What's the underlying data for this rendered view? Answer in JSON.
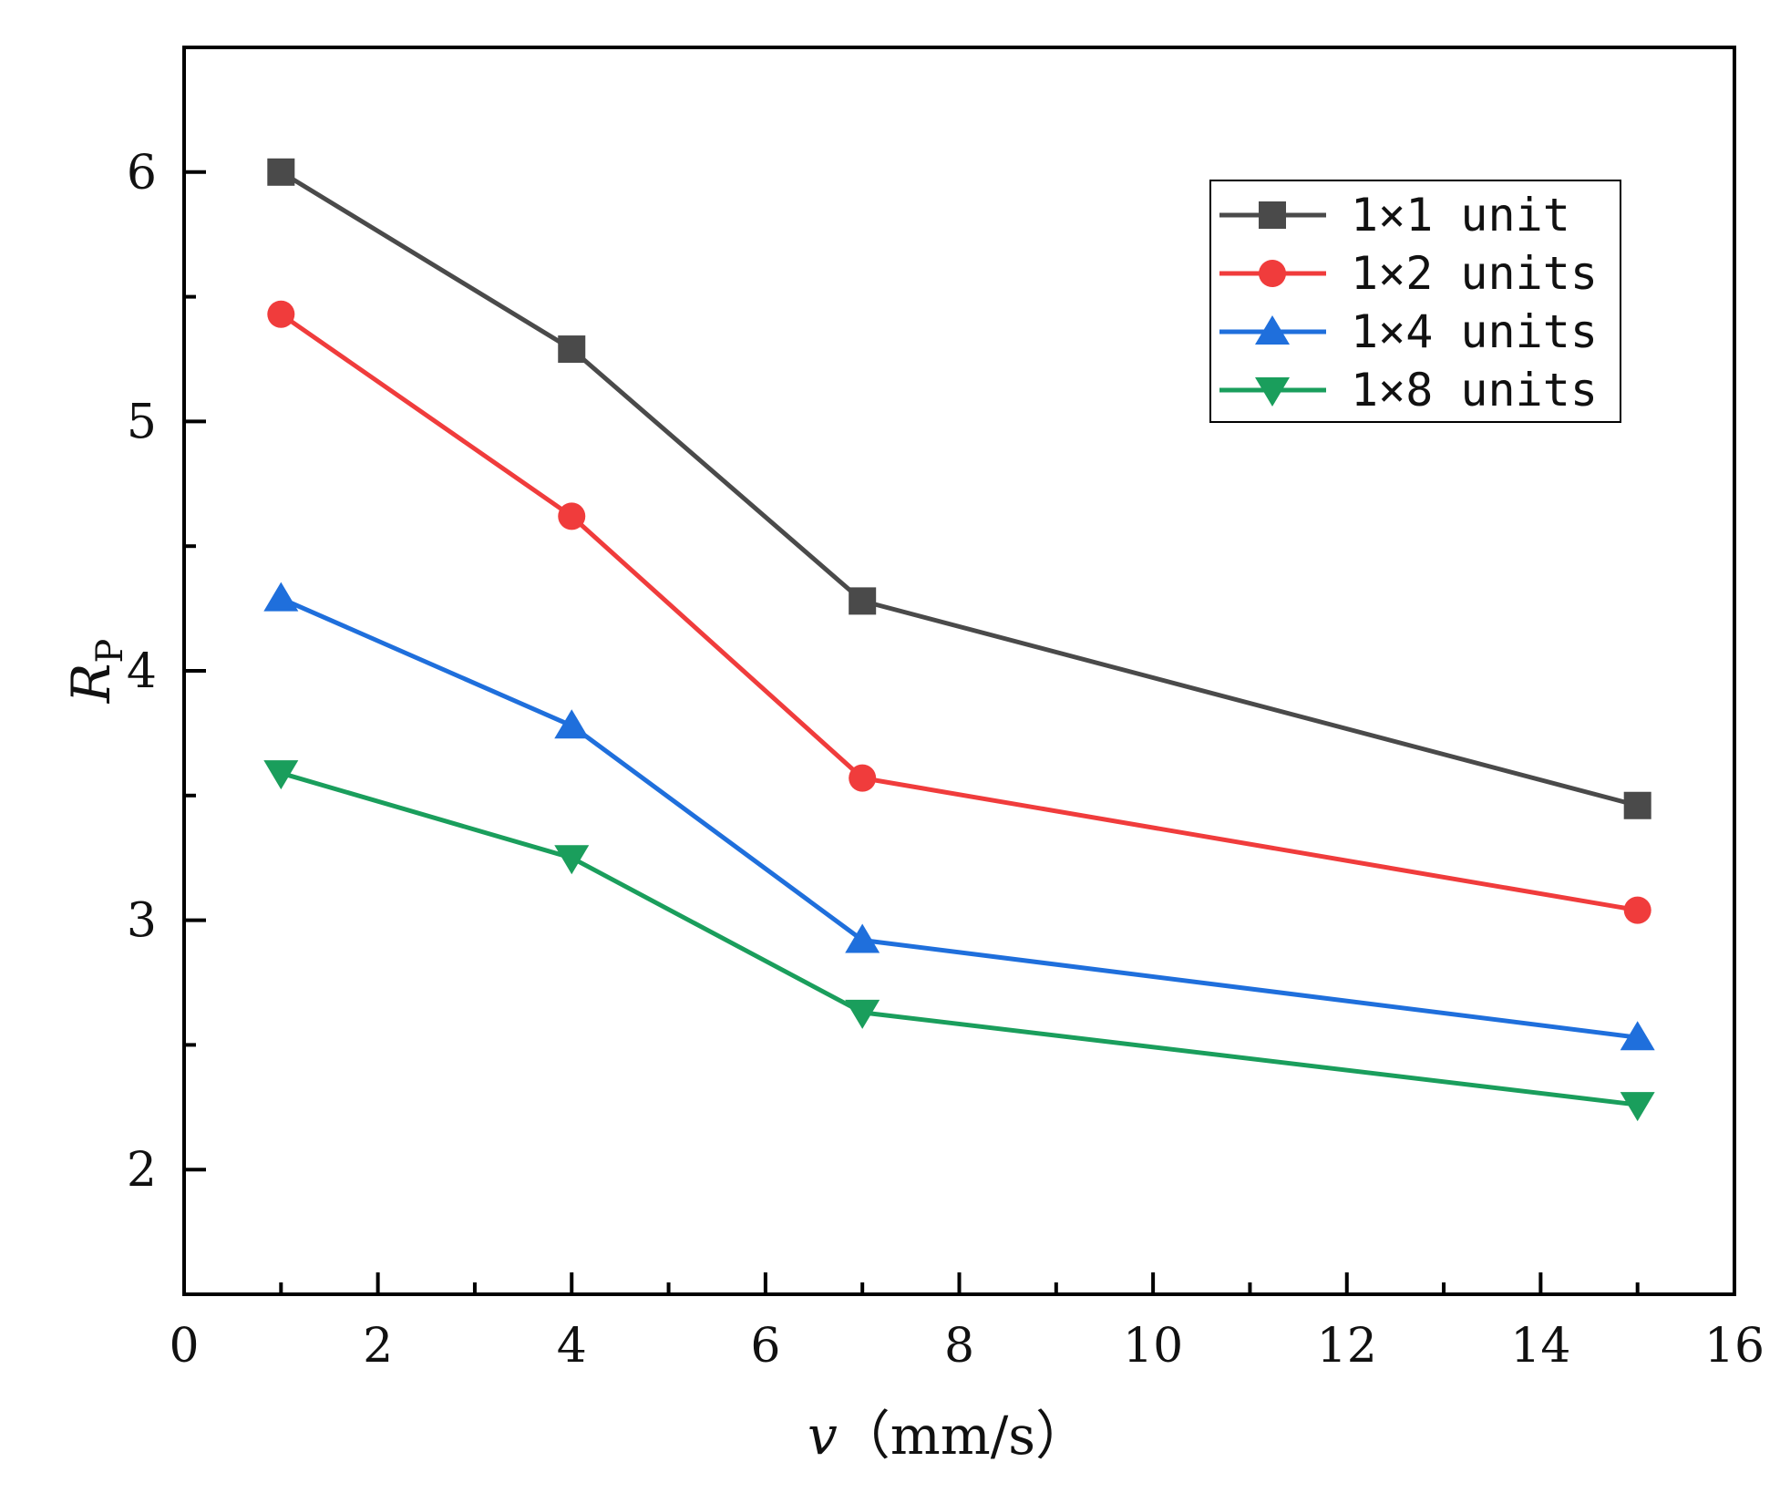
{
  "chart_data": {
    "type": "line",
    "title": "",
    "xlabel": {
      "main": "v",
      "unit": "（mm/s）"
    },
    "ylabel": {
      "main": "R",
      "sub": "P"
    },
    "xlim": [
      0,
      16
    ],
    "ylim": [
      1.5,
      6.5
    ],
    "xticks": [
      0,
      2,
      4,
      6,
      8,
      10,
      12,
      14,
      16
    ],
    "xtick_labels": [
      "0",
      "2",
      "4",
      "6",
      "8",
      "10",
      "12",
      "14",
      "16"
    ],
    "yticks": [
      2,
      3,
      4,
      5,
      6
    ],
    "ytick_labels": [
      "2",
      "3",
      "4",
      "5",
      "6"
    ],
    "grid": false,
    "legend_position": "top-right",
    "x": [
      1,
      4,
      7,
      15
    ],
    "series": [
      {
        "name": "1×1 unit",
        "marker": "square",
        "color": "#4a4a4a",
        "values": [
          6.0,
          5.29,
          4.28,
          3.46
        ]
      },
      {
        "name": "1×2 units",
        "marker": "circle",
        "color": "#f03c3c",
        "values": [
          5.43,
          4.62,
          3.57,
          3.04
        ]
      },
      {
        "name": "1×4 units",
        "marker": "triangle-up",
        "color": "#1f6fdc",
        "values": [
          4.29,
          3.78,
          2.92,
          2.53
        ]
      },
      {
        "name": "1×8 units",
        "marker": "triangle-down",
        "color": "#1a9e5c",
        "values": [
          3.59,
          3.25,
          2.63,
          2.26
        ]
      }
    ]
  }
}
